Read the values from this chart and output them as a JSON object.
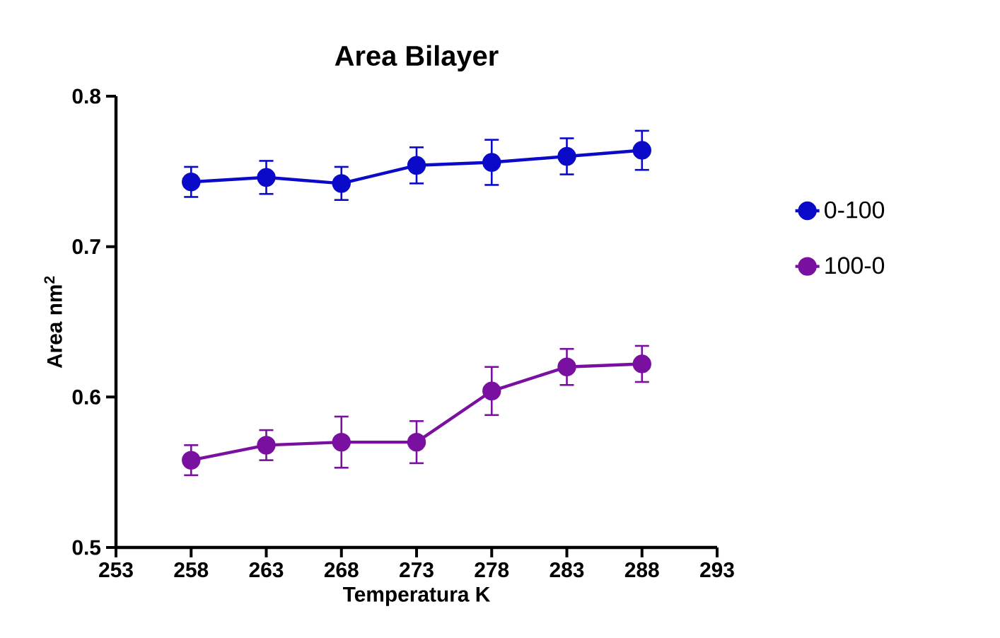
{
  "chart_data": {
    "type": "line",
    "title": "Area Bilayer",
    "xlabel": "Temperatura K",
    "ylabel": "Area nm$^{2}$",
    "x": [
      258,
      263,
      268,
      273,
      278,
      283,
      288
    ],
    "series": [
      {
        "name": "0-100",
        "color": "#0a0ac8",
        "values": [
          0.743,
          0.746,
          0.742,
          0.754,
          0.756,
          0.76,
          0.764
        ],
        "errors": [
          0.01,
          0.011,
          0.011,
          0.012,
          0.015,
          0.012,
          0.013
        ]
      },
      {
        "name": "100-0",
        "color": "#7a10a0",
        "values": [
          0.558,
          0.568,
          0.57,
          0.57,
          0.604,
          0.62,
          0.622
        ],
        "errors": [
          0.01,
          0.01,
          0.017,
          0.014,
          0.016,
          0.012,
          0.012
        ]
      }
    ],
    "xlim": [
      253,
      293
    ],
    "xticks": [
      253,
      258,
      263,
      268,
      273,
      278,
      283,
      288,
      293
    ],
    "ylim": [
      0.5,
      0.8
    ],
    "yticks": [
      0.5,
      0.6,
      0.7,
      0.8
    ],
    "grid": false,
    "legend": "right",
    "marker": "circle",
    "line_style": "solid"
  }
}
